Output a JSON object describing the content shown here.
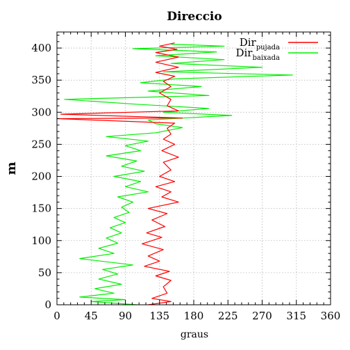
{
  "chart_data": {
    "type": "line",
    "title": "Direccio",
    "xlabel": "graus",
    "ylabel": "m",
    "xlim": [
      0,
      360
    ],
    "ylim": [
      0,
      425
    ],
    "xticks": [
      0,
      45,
      90,
      135,
      180,
      225,
      270,
      315,
      360
    ],
    "yticks": [
      0,
      50,
      100,
      150,
      200,
      250,
      300,
      350,
      400
    ],
    "grid": true,
    "legend_position": "top-right",
    "series": [
      {
        "name_main": "Dir",
        "name_sub": "pujada",
        "color": "#ff0000",
        "points": [
          [
            120,
            0
          ],
          [
            150,
            5
          ],
          [
            125,
            10
          ],
          [
            145,
            18
          ],
          [
            140,
            28
          ],
          [
            150,
            38
          ],
          [
            130,
            45
          ],
          [
            148,
            52
          ],
          [
            115,
            60
          ],
          [
            135,
            68
          ],
          [
            120,
            76
          ],
          [
            140,
            86
          ],
          [
            112,
            95
          ],
          [
            138,
            105
          ],
          [
            118,
            112
          ],
          [
            142,
            122
          ],
          [
            125,
            132
          ],
          [
            145,
            142
          ],
          [
            120,
            150
          ],
          [
            160,
            160
          ],
          [
            138,
            168
          ],
          [
            150,
            176
          ],
          [
            130,
            184
          ],
          [
            155,
            192
          ],
          [
            135,
            200
          ],
          [
            150,
            210
          ],
          [
            140,
            222
          ],
          [
            160,
            230
          ],
          [
            138,
            240
          ],
          [
            155,
            250
          ],
          [
            140,
            258
          ],
          [
            150,
            266
          ],
          [
            145,
            275
          ],
          [
            155,
            283
          ],
          [
            0,
            290
          ],
          [
            165,
            291
          ],
          [
            5,
            297
          ],
          [
            160,
            302
          ],
          [
            145,
            310
          ],
          [
            150,
            320
          ],
          [
            135,
            330
          ],
          [
            150,
            340
          ],
          [
            140,
            348
          ],
          [
            155,
            356
          ],
          [
            130,
            362
          ],
          [
            160,
            370
          ],
          [
            130,
            378
          ],
          [
            160,
            386
          ],
          [
            130,
            393
          ],
          [
            158,
            398
          ],
          [
            135,
            403
          ],
          [
            155,
            408
          ]
        ]
      },
      {
        "name_main": "Dir",
        "name_sub": "baixada",
        "color": "#00ee00",
        "points": [
          [
            105,
            0
          ],
          [
            45,
            5
          ],
          [
            90,
            8
          ],
          [
            30,
            12
          ],
          [
            75,
            18
          ],
          [
            50,
            25
          ],
          [
            85,
            32
          ],
          [
            55,
            40
          ],
          [
            80,
            48
          ],
          [
            60,
            55
          ],
          [
            100,
            62
          ],
          [
            30,
            72
          ],
          [
            75,
            80
          ],
          [
            55,
            88
          ],
          [
            80,
            96
          ],
          [
            65,
            104
          ],
          [
            85,
            112
          ],
          [
            70,
            120
          ],
          [
            90,
            128
          ],
          [
            75,
            136
          ],
          [
            95,
            144
          ],
          [
            85,
            152
          ],
          [
            100,
            160
          ],
          [
            80,
            168
          ],
          [
            120,
            176
          ],
          [
            90,
            184
          ],
          [
            110,
            192
          ],
          [
            75,
            200
          ],
          [
            115,
            208
          ],
          [
            85,
            216
          ],
          [
            105,
            224
          ],
          [
            65,
            232
          ],
          [
            110,
            240
          ],
          [
            90,
            248
          ],
          [
            120,
            255
          ],
          [
            65,
            262
          ],
          [
            130,
            268
          ],
          [
            165,
            276
          ],
          [
            130,
            282
          ],
          [
            120,
            288
          ],
          [
            230,
            295
          ],
          [
            140,
            300
          ],
          [
            200,
            306
          ],
          [
            110,
            312
          ],
          [
            10,
            320
          ],
          [
            200,
            326
          ],
          [
            120,
            333
          ],
          [
            190,
            340
          ],
          [
            110,
            346
          ],
          [
            155,
            352
          ],
          [
            310,
            358
          ],
          [
            140,
            363
          ],
          [
            270,
            370
          ],
          [
            150,
            376
          ],
          [
            220,
            382
          ],
          [
            130,
            388
          ],
          [
            210,
            394
          ],
          [
            100,
            399
          ],
          [
            220,
            403
          ],
          [
            150,
            406
          ]
        ]
      }
    ]
  }
}
